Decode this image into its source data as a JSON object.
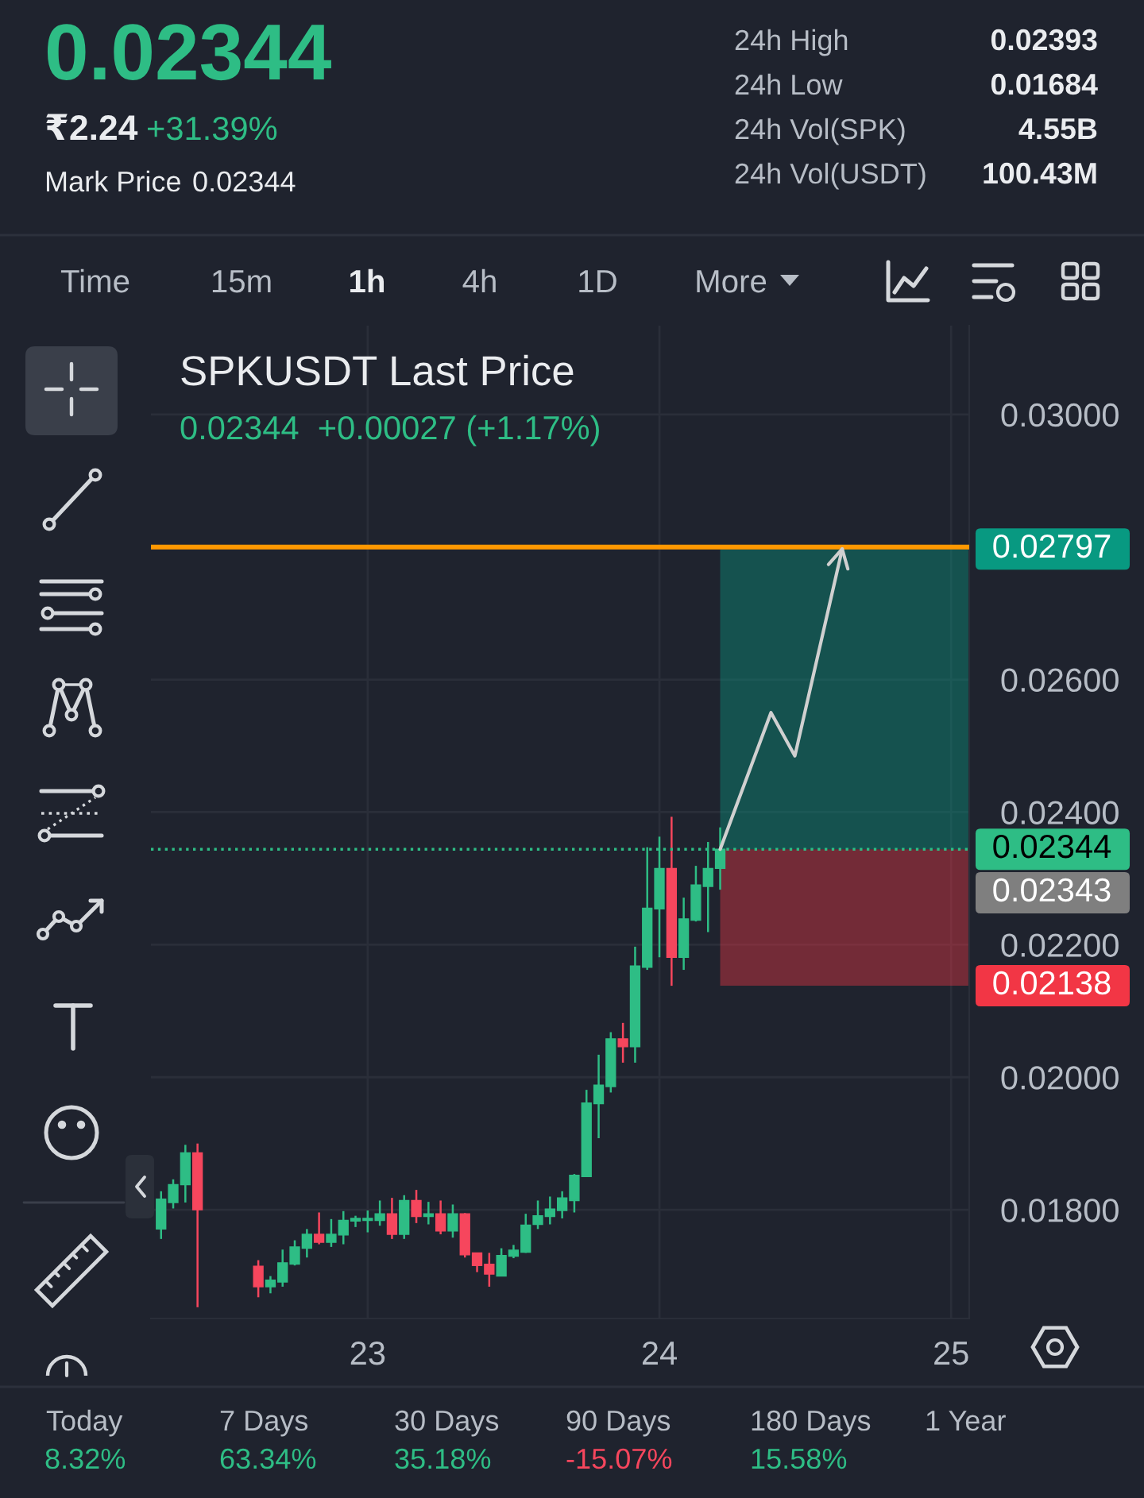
{
  "chart_data": {
    "type": "candlestick",
    "title": "SPKUSDT Last Price",
    "subtitle": "0.02344  +0.00027 (+1.17%)",
    "x": [
      22.2917,
      22.3333,
      22.375,
      22.4167,
      22.625,
      22.6667,
      22.7083,
      22.75,
      22.7917,
      22.8333,
      22.875,
      22.9167,
      22.9583,
      23,
      23.0417,
      23.0833,
      23.125,
      23.1667,
      23.2083,
      23.25,
      23.2917,
      23.3333,
      23.375,
      23.4167,
      23.4583,
      23.5,
      23.5417,
      23.5833,
      23.625,
      23.6667,
      23.7083,
      23.75,
      23.7917,
      23.8333,
      23.875,
      23.9167,
      23.9583,
      24,
      24.0417,
      24.0833,
      24.125,
      24.1667,
      24.2083
    ],
    "ohlc": [
      [
        0.01771,
        0.01828,
        0.01756,
        0.01816
      ],
      [
        0.01811,
        0.01846,
        0.01802,
        0.01838
      ],
      [
        0.01838,
        0.01898,
        0.01811,
        0.01886
      ],
      [
        0.01886,
        0.019,
        0.01653,
        0.018
      ],
      [
        0.01715,
        0.01724,
        0.01668,
        0.01684
      ],
      [
        0.01684,
        0.017,
        0.01674,
        0.01694
      ],
      [
        0.01691,
        0.0174,
        0.01684,
        0.0172
      ],
      [
        0.01718,
        0.01754,
        0.01716,
        0.01744
      ],
      [
        0.01742,
        0.01771,
        0.01728,
        0.01763
      ],
      [
        0.01763,
        0.01796,
        0.01748,
        0.01751
      ],
      [
        0.01751,
        0.01786,
        0.01744,
        0.01763
      ],
      [
        0.01762,
        0.01798,
        0.01748,
        0.01784
      ],
      [
        0.01783,
        0.01791,
        0.01774,
        0.01787
      ],
      [
        0.01784,
        0.01799,
        0.01766,
        0.01787
      ],
      [
        0.01784,
        0.01814,
        0.01776,
        0.01794
      ],
      [
        0.01794,
        0.01818,
        0.01756,
        0.01763
      ],
      [
        0.01763,
        0.01822,
        0.01756,
        0.01814
      ],
      [
        0.01814,
        0.0183,
        0.0178,
        0.0179
      ],
      [
        0.0179,
        0.01812,
        0.01778,
        0.01794
      ],
      [
        0.01794,
        0.01814,
        0.01763,
        0.01768
      ],
      [
        0.01768,
        0.01808,
        0.01758,
        0.01794
      ],
      [
        0.01794,
        0.01795,
        0.01728,
        0.01732
      ],
      [
        0.01735,
        0.01735,
        0.01706,
        0.01716
      ],
      [
        0.01718,
        0.01735,
        0.01684,
        0.01703
      ],
      [
        0.017,
        0.01742,
        0.017,
        0.01731
      ],
      [
        0.0173,
        0.01747,
        0.01727,
        0.01739
      ],
      [
        0.01736,
        0.01794,
        0.01735,
        0.01777
      ],
      [
        0.01778,
        0.01814,
        0.01771,
        0.01791
      ],
      [
        0.0179,
        0.0182,
        0.01778,
        0.01801
      ],
      [
        0.01799,
        0.01828,
        0.01787,
        0.01818
      ],
      [
        0.01814,
        0.01854,
        0.01796,
        0.01852
      ],
      [
        0.0185,
        0.01981,
        0.0185,
        0.01961
      ],
      [
        0.0196,
        0.02034,
        0.01908,
        0.01988
      ],
      [
        0.01986,
        0.02068,
        0.01977,
        0.02058
      ],
      [
        0.02058,
        0.02082,
        0.02022,
        0.02046
      ],
      [
        0.02046,
        0.02197,
        0.02022,
        0.02168
      ],
      [
        0.02166,
        0.02347,
        0.02162,
        0.02255
      ],
      [
        0.02254,
        0.02363,
        0.02181,
        0.02315
      ],
      [
        0.02315,
        0.02393,
        0.02138,
        0.02181
      ],
      [
        0.02181,
        0.02271,
        0.02162,
        0.02239
      ],
      [
        0.02237,
        0.02319,
        0.02235,
        0.0229
      ],
      [
        0.02288,
        0.02355,
        0.02219,
        0.02315
      ],
      [
        0.02315,
        0.02377,
        0.02283,
        0.02344
      ]
    ],
    "xlim": [
      22.257,
      25.062
    ],
    "xticks": [
      23,
      24,
      25
    ],
    "ylim": [
      0.01636,
      0.03134
    ],
    "yticks": [
      {
        "value": 0.018,
        "label": "0.01800"
      },
      {
        "value": 0.02,
        "label": "0.02000"
      },
      {
        "value": 0.022,
        "label": "0.02200"
      },
      {
        "value": 0.024,
        "label": "0.02400"
      },
      {
        "value": 0.026,
        "label": "0.02600"
      },
      {
        "value": 0.028,
        "label": null
      },
      {
        "value": 0.03,
        "label": "0.03000"
      }
    ],
    "grid": true,
    "ref_lines": [
      {
        "axis": "y",
        "value": 0.028,
        "color": "#ff9800"
      },
      {
        "axis": "y",
        "value": 0.02344,
        "label": "0.02344",
        "color": "#2ebd85",
        "line_style": "dotted"
      }
    ],
    "bands": [
      {
        "axis": "y",
        "from": 0.02344,
        "to": 0.02797,
        "label": "0.02797",
        "color": "#089981"
      },
      {
        "axis": "y",
        "from": 0.02344,
        "to": 0.02138,
        "label": "0.02138",
        "color": "#f23645"
      }
    ],
    "annotations": [
      "0.02344",
      "₹2.24",
      "+31.39%",
      "Mark Price",
      "0.02344",
      "24h High",
      "0.02393",
      "24h Low",
      "0.01684",
      "24h Vol(SPK)",
      "4.55B",
      "24h Vol(USDT)",
      "100.43M",
      "Time",
      "15m",
      "1h",
      "4h",
      "1D",
      "More",
      "Today",
      "8.32%",
      "7 Days",
      "63.34%",
      "30 Days",
      "35.18%",
      "90 Days",
      "-15.07%",
      "180 Days",
      "15.58%",
      "1 Year",
      "0.02343"
    ]
  }
}
